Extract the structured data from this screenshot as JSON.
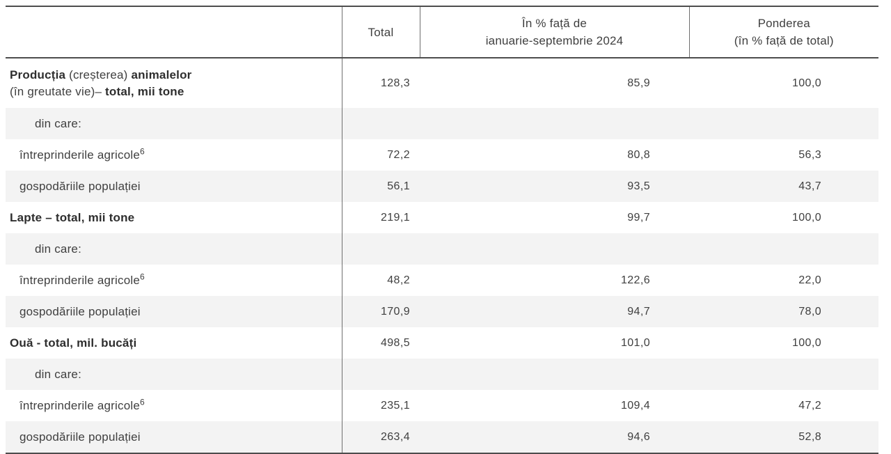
{
  "colors": {
    "stripe_row_background": "#f3f3f3",
    "dark_rule": "#4d4d4d",
    "light_rule": "#6e6e6e",
    "text": "#3f3f3f"
  },
  "header": {
    "label": "",
    "total": "Total",
    "pct_line1": "În % față de",
    "pct_line2": "ianuarie-septembrie 2024",
    "share_line1": "Ponderea",
    "share_line2": "(în % față de total)"
  },
  "rows": [
    {
      "indent": 0,
      "tall": true,
      "stripe": false,
      "parts": [
        {
          "t": "Producția",
          "b": true
        },
        {
          "t": " (creșterea) ",
          "b": false
        },
        {
          "t": "animalelor",
          "b": true
        },
        {
          "br": true
        },
        {
          "t": "(în greutate vie)– ",
          "b": false
        },
        {
          "t": "total, mii tone",
          "b": true
        }
      ],
      "total": "128,3",
      "pct": "85,9",
      "share": "100,0"
    },
    {
      "indent": 2,
      "tall": false,
      "stripe": true,
      "parts": [
        {
          "t": "din care:",
          "b": false
        }
      ],
      "total": "",
      "pct": "",
      "share": ""
    },
    {
      "indent": 1,
      "tall": false,
      "stripe": false,
      "parts": [
        {
          "t": "întreprinderile agricole",
          "b": false
        },
        {
          "t": "6",
          "sup": true
        }
      ],
      "total": "72,2",
      "pct": "80,8",
      "share": "56,3"
    },
    {
      "indent": 1,
      "tall": false,
      "stripe": true,
      "parts": [
        {
          "t": "gospodăriile populației",
          "b": false
        }
      ],
      "total": "56,1",
      "pct": "93,5",
      "share": "43,7"
    },
    {
      "indent": 0,
      "tall": false,
      "stripe": false,
      "parts": [
        {
          "t": "Lapte – total, mii tone",
          "b": true
        }
      ],
      "total": "219,1",
      "pct": "99,7",
      "share": "100,0"
    },
    {
      "indent": 2,
      "tall": false,
      "stripe": true,
      "parts": [
        {
          "t": "din care:",
          "b": false
        }
      ],
      "total": "",
      "pct": "",
      "share": ""
    },
    {
      "indent": 1,
      "tall": false,
      "stripe": false,
      "parts": [
        {
          "t": "întreprinderile agricole",
          "b": false
        },
        {
          "t": "6",
          "sup": true
        }
      ],
      "total": "48,2",
      "pct": "122,6",
      "share": "22,0"
    },
    {
      "indent": 1,
      "tall": false,
      "stripe": true,
      "parts": [
        {
          "t": "gospodăriile populației",
          "b": false
        }
      ],
      "total": "170,9",
      "pct": "94,7",
      "share": "78,0"
    },
    {
      "indent": 0,
      "tall": false,
      "stripe": false,
      "parts": [
        {
          "t": "Ouă - total, mil. bucăți",
          "b": true
        }
      ],
      "total": "498,5",
      "pct": "101,0",
      "share": "100,0"
    },
    {
      "indent": 2,
      "tall": false,
      "stripe": true,
      "parts": [
        {
          "t": "din care:",
          "b": false
        }
      ],
      "total": "",
      "pct": "",
      "share": ""
    },
    {
      "indent": 1,
      "tall": false,
      "stripe": false,
      "parts": [
        {
          "t": "întreprinderile agricole",
          "b": false
        },
        {
          "t": "6",
          "sup": true
        }
      ],
      "total": "235,1",
      "pct": "109,4",
      "share": "47,2"
    },
    {
      "indent": 1,
      "tall": false,
      "stripe": true,
      "parts": [
        {
          "t": "gospodăriile populației",
          "b": false
        }
      ],
      "total": "263,4",
      "pct": "94,6",
      "share": "52,8"
    }
  ]
}
